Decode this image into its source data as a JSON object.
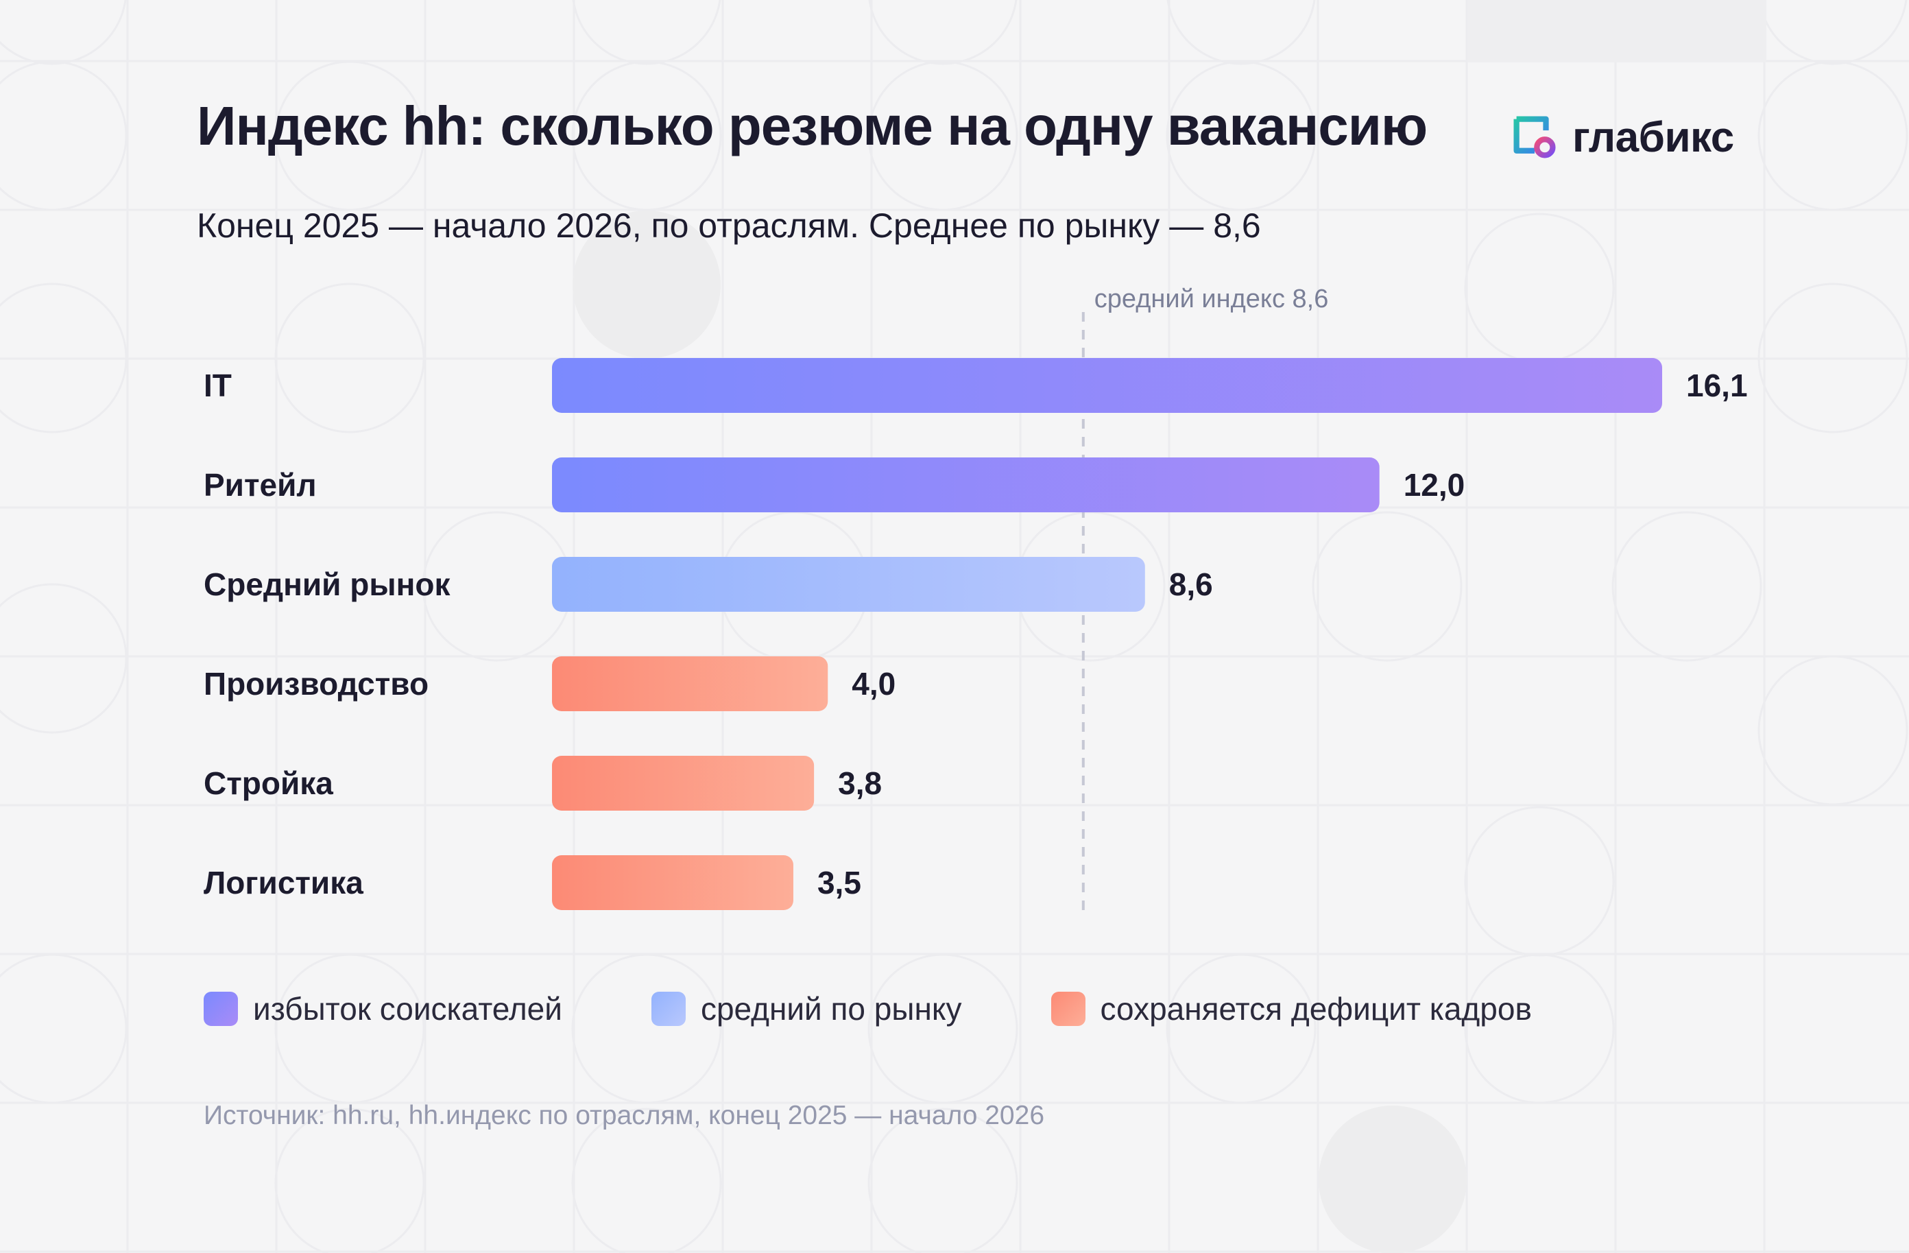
{
  "header": {
    "title": "Индекс hh: сколько резюме на одну вакансию",
    "subtitle": "Конец 2025 — начало 2026, по отраслям. Среднее по рынку — 8,6"
  },
  "logo": {
    "text": "глабикс",
    "icon": "glabix-logo-icon"
  },
  "colors": {
    "surplus_start": "#7b8afe",
    "surplus_end": "#a98bf7",
    "average_start": "#93b2fd",
    "average_end": "#b9c8fd",
    "deficit_start": "#fc8a75",
    "deficit_end": "#fdae98",
    "text": "#1c1b2e",
    "muted": "#9498ad",
    "background": "#f5f5f6"
  },
  "chart_data": {
    "type": "bar",
    "orientation": "horizontal",
    "categories": [
      "IT",
      "Ритейл",
      "Средний рынок",
      "Производство",
      "Стройка",
      "Логистика"
    ],
    "values": [
      16.1,
      12.0,
      8.6,
      4.0,
      3.8,
      3.5
    ],
    "value_labels": [
      "16,1",
      "12,0",
      "8,6",
      "4,0",
      "3,8",
      "3,5"
    ],
    "groups": [
      "surplus",
      "surplus",
      "average",
      "deficit",
      "deficit",
      "deficit"
    ],
    "reference_line": {
      "value": 8.6,
      "label": "средний индекс 8,6",
      "style": "dashed"
    },
    "xlim": [
      0,
      16.1
    ],
    "grid": false,
    "legend_placement": "bottom"
  },
  "legend": {
    "items": [
      {
        "group": "surplus",
        "label": "избыток соискателей"
      },
      {
        "group": "average",
        "label": "средний по рынку"
      },
      {
        "group": "deficit",
        "label": "сохраняется дефицит кадров"
      }
    ]
  },
  "footer": {
    "source": "Источник: hh.ru, hh.индекс по отраслям, конец 2025 — начало 2026"
  }
}
